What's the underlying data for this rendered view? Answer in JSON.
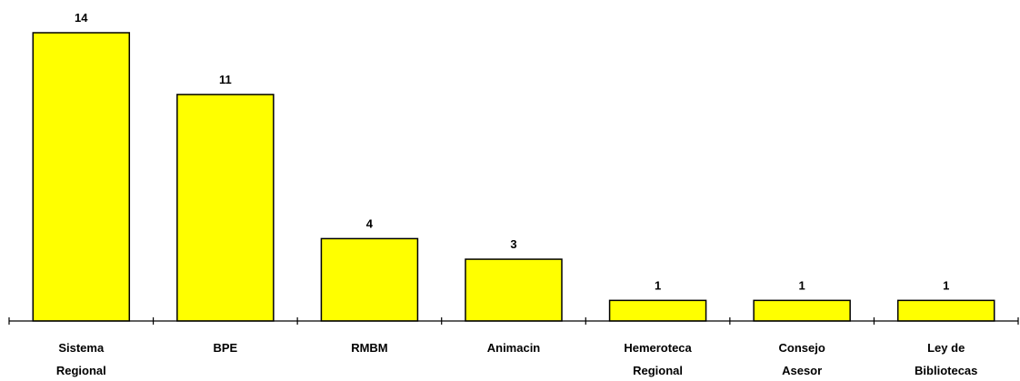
{
  "chart_data": {
    "type": "bar",
    "categories": [
      [
        "Sistema",
        "Regional"
      ],
      [
        "BPE"
      ],
      [
        "RMBM"
      ],
      [
        "Animacin"
      ],
      [
        "Hemeroteca",
        "Regional"
      ],
      [
        "Consejo",
        "Asesor"
      ],
      [
        "Ley de",
        "Bibliotecas"
      ]
    ],
    "values": [
      14,
      11,
      4,
      3,
      1,
      1,
      1
    ],
    "ylim": [
      0,
      14
    ],
    "bar_color": "#ffff00",
    "bar_outline": "#000000",
    "data_labels": true,
    "grid": false,
    "legend": "none"
  }
}
